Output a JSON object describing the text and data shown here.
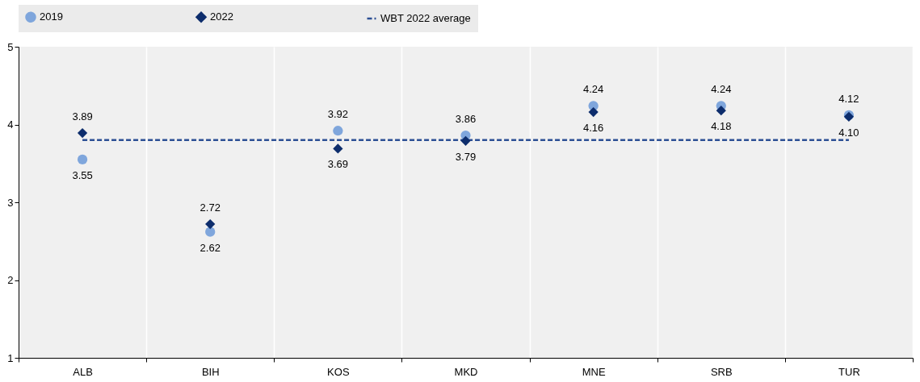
{
  "chart_data": {
    "type": "scatter",
    "categories": [
      "ALB",
      "BIH",
      "KOS",
      "MKD",
      "MNE",
      "SRB",
      "TUR"
    ],
    "series": [
      {
        "name": "2019",
        "marker": "circle",
        "color": "#7fa6dc",
        "values": [
          3.55,
          2.62,
          3.92,
          3.86,
          4.24,
          4.24,
          4.12
        ],
        "value_labels": [
          "3.55",
          "2.62",
          "3.92",
          "3.86",
          "4.24",
          "4.24",
          "4.12"
        ]
      },
      {
        "name": "2022",
        "marker": "diamond",
        "color": "#0d2d6c",
        "values": [
          3.89,
          2.72,
          3.69,
          3.79,
          4.16,
          4.18,
          4.1
        ],
        "value_labels": [
          "3.89",
          "2.72",
          "3.69",
          "3.79",
          "4.16",
          "4.18",
          "4.10"
        ]
      },
      {
        "name": "WBT 2022 average",
        "type": "line",
        "line_style": "dashed",
        "color": "#2c4f94",
        "values": [
          3.8,
          3.8,
          3.8,
          3.8,
          3.8,
          3.8,
          3.8
        ]
      }
    ],
    "ylim": [
      1,
      5
    ],
    "yticks": [
      1,
      2,
      3,
      4,
      5
    ],
    "grid": "x",
    "legend": "top"
  }
}
